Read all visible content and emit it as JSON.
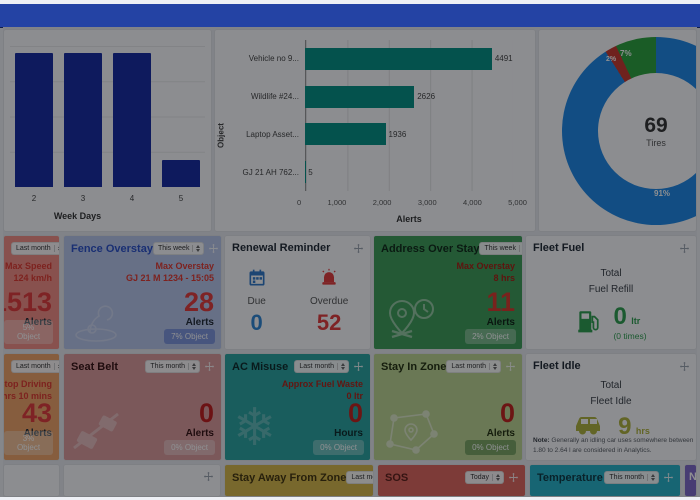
{
  "chart_data": [
    {
      "type": "bar",
      "categories": [
        "2",
        "3",
        "4",
        "5"
      ],
      "values": [
        100,
        100,
        100,
        20
      ],
      "xlabel": "Week Days",
      "ylabel": "",
      "ylim": [
        0,
        105
      ],
      "grid": true,
      "bar_color": "#162ba0",
      "note": "y-axis cut off at left screen edge; values estimated from bar heights"
    },
    {
      "type": "bar",
      "orientation": "horizontal",
      "categories": [
        "Vehicle no 9...",
        "Wildlife #24...",
        "Laptop Asset...",
        "GJ 21 AH 762..."
      ],
      "values": [
        4491,
        2626,
        1936,
        5
      ],
      "value_labels": [
        "4491",
        "2626",
        "1936",
        "5"
      ],
      "xlabel": "Alerts",
      "ylabel": "Object",
      "xlim": [
        0,
        5000
      ],
      "xticks": [
        "0",
        "1,000",
        "2,000",
        "3,000",
        "4,000",
        "5,000"
      ],
      "grid": true,
      "bar_color": "#049184"
    },
    {
      "type": "pie",
      "donut": true,
      "center_value": "69",
      "center_label": "Tires",
      "slices": [
        {
          "label": "91%",
          "value": 91,
          "color": "#1e88e5"
        },
        {
          "label": "2%",
          "value": 2,
          "color": "#c63a2f"
        },
        {
          "label": "7%",
          "value": 7,
          "color": "#2da33c"
        }
      ]
    }
  ],
  "cards": {
    "overspeed": {
      "dropdown": "Last month",
      "sub1": "Max Speed",
      "sub2": "124 km/h",
      "value": "1513",
      "unit": "Alerts",
      "button": "5% Object",
      "bg": "#f58f85"
    },
    "fence": {
      "title": "Fence Overstay",
      "title_color": "#2b50c8",
      "dropdown": "This week",
      "sub1": "Max Overstay",
      "sub2": "GJ 21 M 1234 - 15:05",
      "value": "28",
      "unit": "Alerts",
      "button": "7% Object",
      "bg": "#b9c7ec"
    },
    "renewal": {
      "title": "Renewal Reminder",
      "due_label": "Due",
      "due_value": "0",
      "overdue_label": "Overdue",
      "overdue_value": "52"
    },
    "address": {
      "title": "Address Over Stay",
      "dropdown": "This week",
      "sub1": "Max Overstay",
      "sub2": "8 hrs",
      "value": "11",
      "unit": "Alerts",
      "button": "2% Object",
      "bg": "#3f9d58"
    },
    "fleet_fuel": {
      "title": "Fleet Fuel",
      "line1": "Total",
      "line2": "Fuel Refill",
      "value": "0",
      "unit": "ltr",
      "times": "(0 times)",
      "accent": "#2e9e4f"
    },
    "nonstop": {
      "dropdown": "Last month",
      "sub1": "Max Non Stop Driving",
      "sub2": "10 hrs 10 mins",
      "value": "43",
      "unit": "Alerts",
      "button": "3% Object",
      "bg": "#f0a468"
    },
    "seatbelt": {
      "title": "Seat Belt",
      "dropdown": "This month",
      "value": "0",
      "unit": "Alerts",
      "button": "0% Object",
      "bg": "#dd9c9c"
    },
    "ac_misuse": {
      "title": "AC Misuse",
      "dropdown": "Last month",
      "sub1": "Approx Fuel Waste",
      "sub2": "0 ltr",
      "value": "0",
      "unit": "Hours",
      "button": "0% Object",
      "bg": "#2aa4a0"
    },
    "stay_in_zone": {
      "title": "Stay In Zone",
      "dropdown": "Last month",
      "value": "0",
      "unit": "Alerts",
      "button": "0% Object",
      "bg": "#bed593"
    },
    "fleet_idle": {
      "title": "Fleet Idle",
      "line1": "Total",
      "line2": "Fleet Idle",
      "value": "9",
      "unit": "hrs",
      "note_label": "Note:",
      "note_text": "Generally an idling car uses somewhere between 1.80 to 2.64 l are considered in Analytics.",
      "accent": "#b0b23c"
    },
    "stay_away": {
      "title": "Stay Away From Zone",
      "dropdown": "Last month",
      "bg": "#d8b94a"
    },
    "sos": {
      "title": "SOS",
      "dropdown": "Today",
      "bg": "#e0675e",
      "title_color": "#5e2019"
    },
    "temperature": {
      "title": "Temperature",
      "dropdown": "This month",
      "bg": "#27b2c9",
      "title_color": "#0e3a44"
    },
    "night": {
      "title": "Nig",
      "bg": "#7e68c8",
      "title_color": "#ffffff"
    }
  },
  "colors": {
    "topbar": "#2443a4",
    "alert_red": "#e23b3b",
    "due_blue": "#2f86d4"
  }
}
